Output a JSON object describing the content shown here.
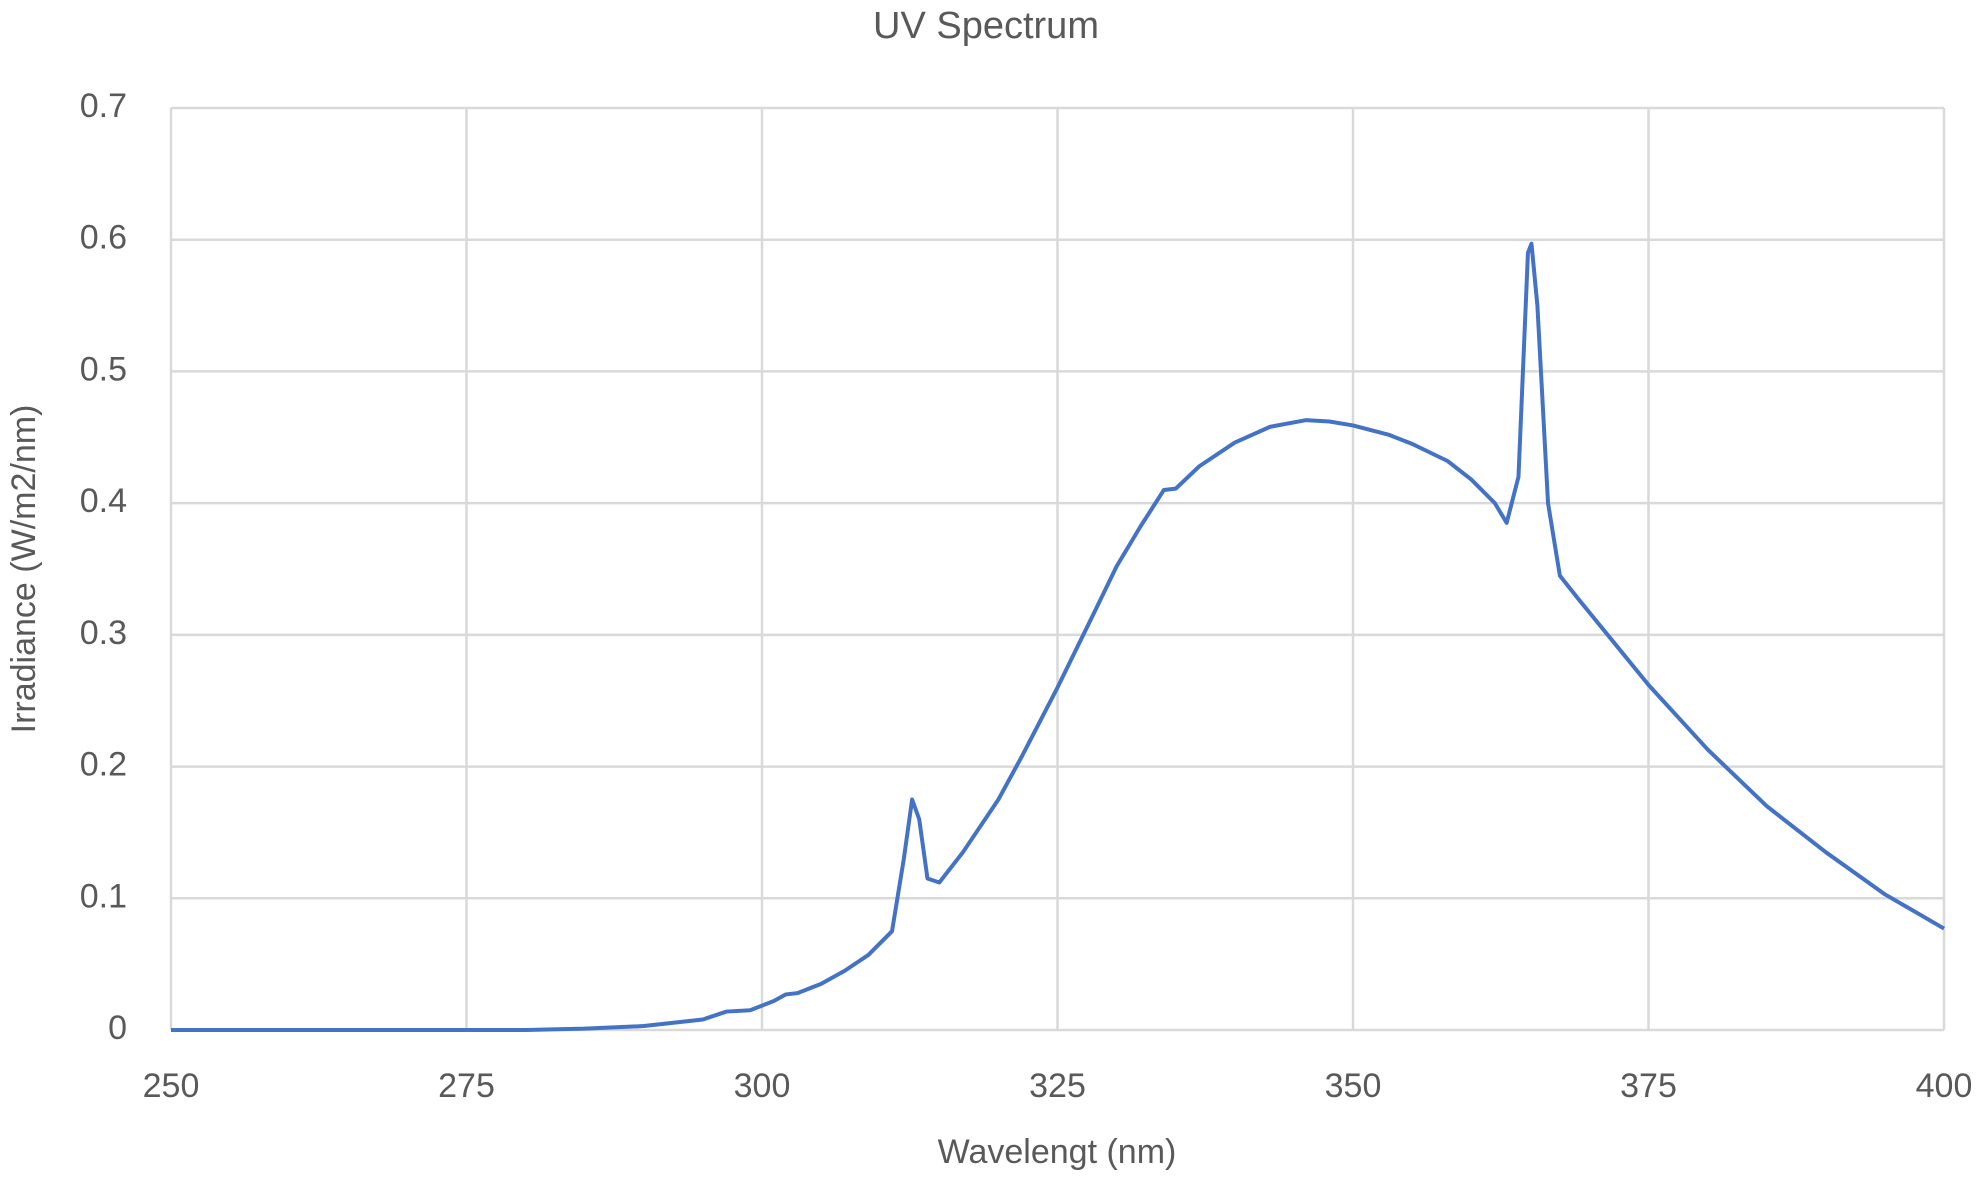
{
  "chart_data": {
    "type": "line",
    "title": "UV Spectrum",
    "x_label": "Wavelengt (nm)",
    "y_label": "Irradiance (W/m2/nm)",
    "xlim": [
      250,
      400
    ],
    "xticks": [
      250,
      275,
      300,
      325,
      350,
      375,
      400
    ],
    "ylim": [
      0,
      0.7
    ],
    "yticks": [
      0,
      0.1,
      0.2,
      0.3,
      0.4,
      0.5,
      0.6,
      0.7
    ],
    "grid": true,
    "series": [
      {
        "name": "UV Spectrum",
        "color": "#4472c4",
        "x": [
          250,
          280,
          285,
          290,
          295,
          297,
          299,
          301,
          302,
          303,
          305,
          307,
          309,
          311,
          312,
          312.7,
          313.3,
          314,
          315,
          317,
          320,
          322,
          325,
          328,
          330,
          332,
          334,
          335,
          337,
          340,
          343,
          346,
          348,
          350,
          353,
          355,
          358,
          360,
          362,
          363,
          364,
          364.8,
          365.1,
          365.6,
          366.5,
          367.5,
          369,
          372,
          375,
          380,
          385,
          390,
          395,
          400
        ],
        "values": [
          0,
          0,
          0.001,
          0.003,
          0.008,
          0.014,
          0.015,
          0.022,
          0.027,
          0.028,
          0.035,
          0.045,
          0.057,
          0.075,
          0.13,
          0.175,
          0.16,
          0.115,
          0.112,
          0.135,
          0.175,
          0.208,
          0.26,
          0.315,
          0.352,
          0.382,
          0.41,
          0.411,
          0.428,
          0.446,
          0.458,
          0.463,
          0.462,
          0.459,
          0.452,
          0.445,
          0.432,
          0.418,
          0.4,
          0.385,
          0.42,
          0.59,
          0.597,
          0.55,
          0.4,
          0.345,
          0.328,
          0.295,
          0.262,
          0.213,
          0.17,
          0.135,
          0.103,
          0.077
        ]
      }
    ]
  }
}
